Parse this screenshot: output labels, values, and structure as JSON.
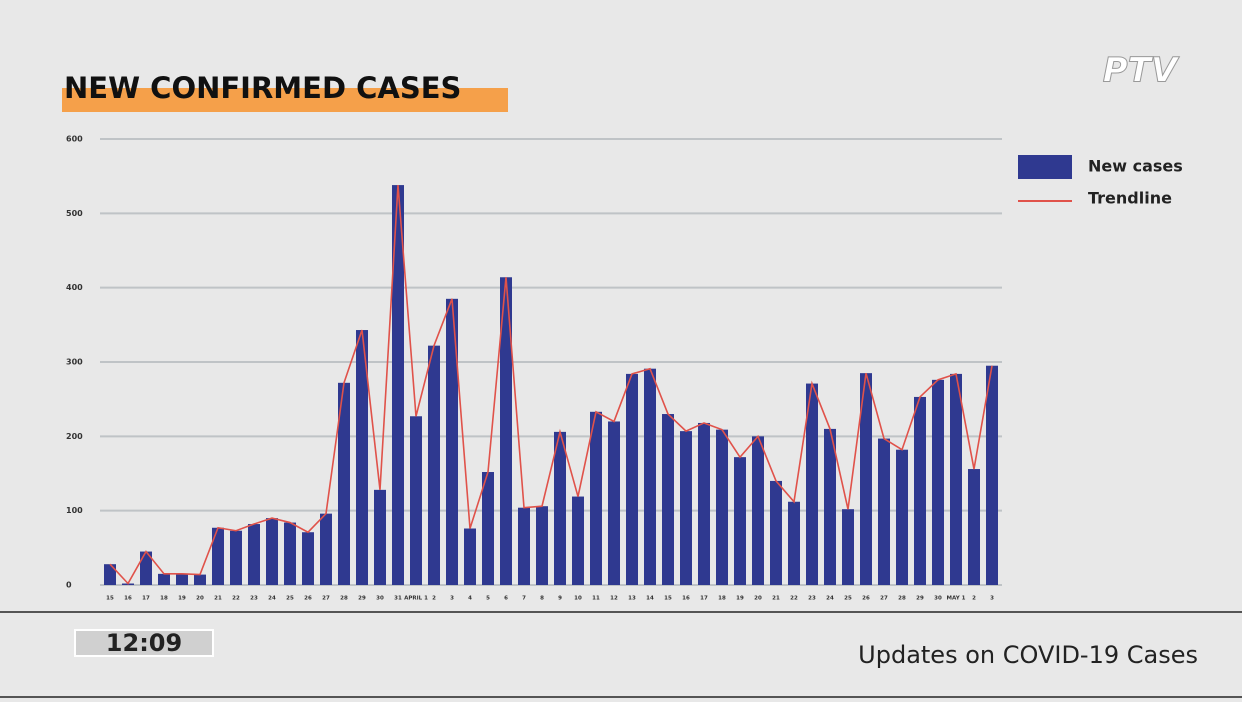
{
  "broadcast": {
    "logo": "PTV",
    "clock": "12:09",
    "caption": "Updates on COVID-19 Cases"
  },
  "chart_data": {
    "type": "bar",
    "title": "NEW CONFIRMED CASES",
    "categories": [
      "15",
      "16",
      "17",
      "18",
      "19",
      "20",
      "21",
      "22",
      "23",
      "24",
      "25",
      "26",
      "27",
      "28",
      "29",
      "30",
      "31",
      "APRIL 1",
      "2",
      "3",
      "4",
      "5",
      "6",
      "7",
      "8",
      "9",
      "10",
      "11",
      "12",
      "13",
      "14",
      "15",
      "16",
      "17",
      "18",
      "19",
      "20",
      "21",
      "22",
      "23",
      "24",
      "25",
      "26",
      "27",
      "28",
      "29",
      "30",
      "MAY 1",
      "2",
      "3"
    ],
    "series": [
      {
        "name": "New cases",
        "color": "#2f3990",
        "values": [
          28,
          2,
          45,
          15,
          15,
          14,
          77,
          73,
          82,
          90,
          84,
          71,
          96,
          272,
          343,
          128,
          538,
          227,
          322,
          385,
          76,
          152,
          414,
          104,
          106,
          206,
          119,
          233,
          220,
          284,
          291,
          230,
          207,
          218,
          209,
          172,
          200,
          140,
          112,
          271,
          210,
          102,
          285,
          197,
          182,
          253,
          276,
          284,
          156,
          295
        ]
      }
    ],
    "trendline": {
      "name": "Trendline",
      "color": "#e0524a"
    },
    "ylim": [
      0,
      600
    ],
    "yticks": [
      0,
      100,
      200,
      300,
      400,
      500,
      600
    ],
    "grid": true
  }
}
